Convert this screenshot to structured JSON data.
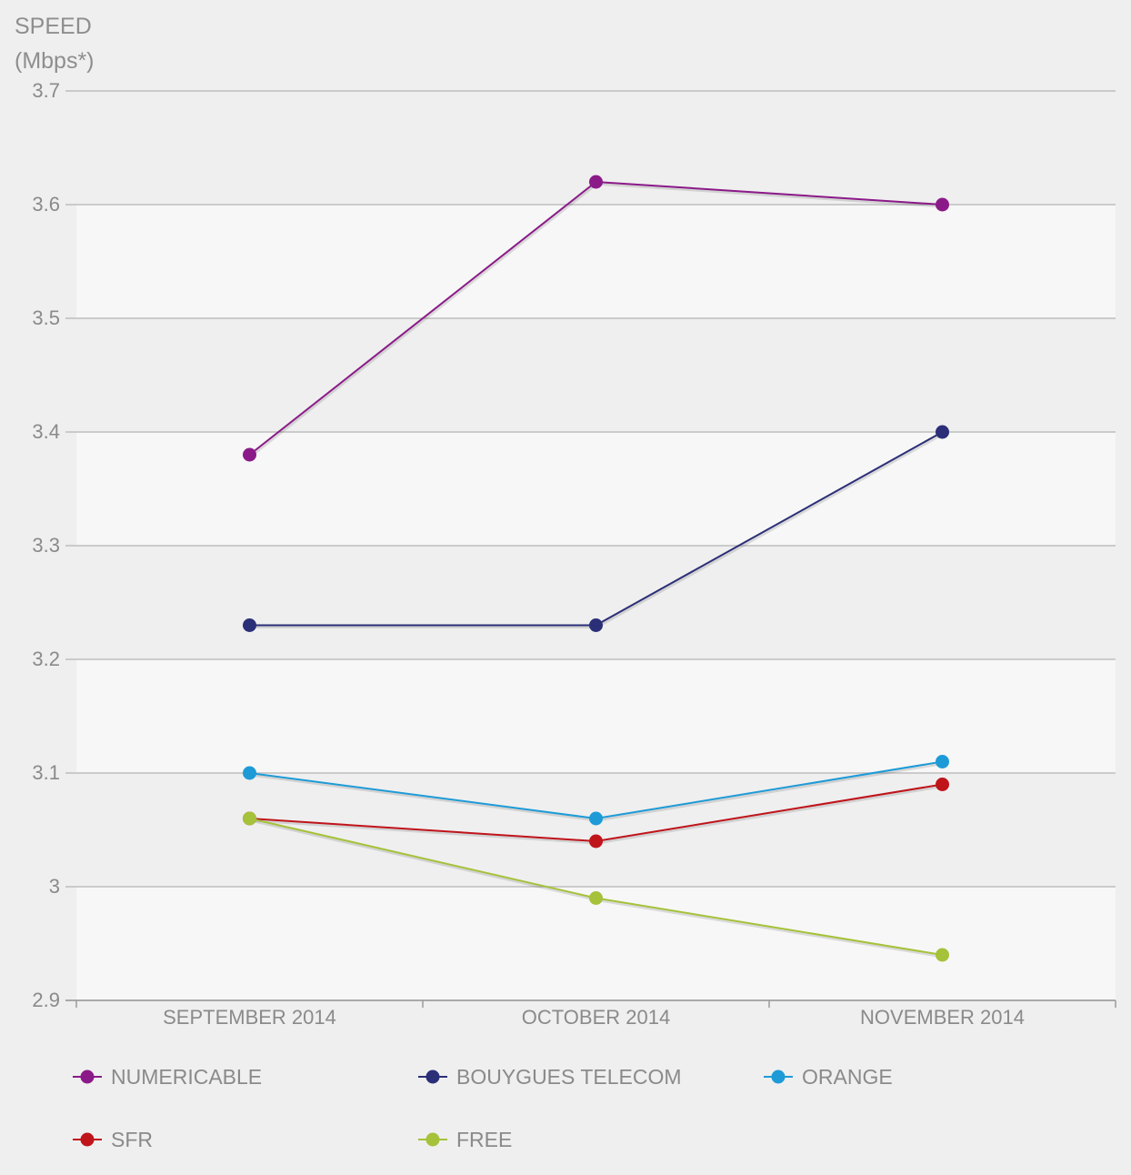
{
  "chart_data": {
    "type": "line",
    "ylabel_line1": "SPEED",
    "ylabel_line2": "(Mbps*)",
    "xlabel": "",
    "categories": [
      "SEPTEMBER 2014",
      "OCTOBER 2014",
      "NOVEMBER 2014"
    ],
    "y_ticks": [
      "2.9",
      "3",
      "3.1",
      "3.2",
      "3.3",
      "3.4",
      "3.5",
      "3.6",
      "3.7"
    ],
    "ylim": [
      2.9,
      3.7
    ],
    "grid": true,
    "alternating_bands": true,
    "legend_position": "bottom",
    "series": [
      {
        "name": "NUMERICABLE",
        "color": "#8b1a89",
        "values": [
          3.38,
          3.62,
          3.6
        ]
      },
      {
        "name": "BOUYGUES TELECOM",
        "color": "#2b2f78",
        "values": [
          3.23,
          3.23,
          3.4
        ]
      },
      {
        "name": "ORANGE",
        "color": "#1e9bd7",
        "values": [
          3.1,
          3.06,
          3.11
        ]
      },
      {
        "name": "SFR",
        "color": "#c0141b",
        "values": [
          3.06,
          3.04,
          3.09
        ]
      },
      {
        "name": "FREE",
        "color": "#a5c23a",
        "values": [
          3.06,
          2.99,
          2.94
        ]
      }
    ]
  }
}
